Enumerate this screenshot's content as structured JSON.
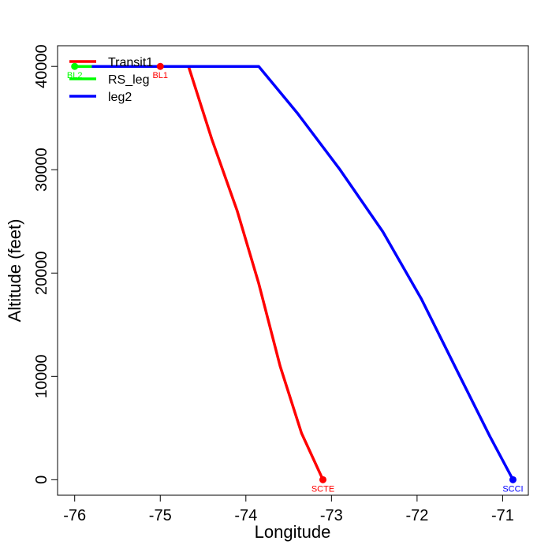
{
  "chart_data": {
    "type": "line",
    "xlabel": "Longitude",
    "ylabel": "Altitude (feet)",
    "xlim": [
      -76.2,
      -70.7
    ],
    "ylim": [
      -1500,
      42000
    ],
    "xticks": [
      -76,
      -75,
      -74,
      -73,
      -72,
      -71
    ],
    "yticks": [
      0,
      10000,
      20000,
      30000,
      40000
    ],
    "xtick_labels": [
      "-76",
      "-75",
      "-74",
      "-73",
      "-72",
      "-71"
    ],
    "ytick_labels": [
      "0",
      "10000",
      "20000",
      "30000",
      "40000"
    ],
    "legend_position": "top-left",
    "series": [
      {
        "name": "Transit1",
        "color": "#ff0000",
        "points": [
          [
            -76.0,
            40000
          ],
          [
            -75.0,
            40000
          ],
          [
            -74.67,
            40000
          ],
          [
            -74.4,
            33000
          ],
          [
            -74.1,
            26000
          ],
          [
            -73.85,
            19000
          ],
          [
            -73.6,
            11000
          ],
          [
            -73.35,
            4500
          ],
          [
            -73.1,
            0
          ]
        ]
      },
      {
        "name": "RS_leg",
        "color": "#00ff00",
        "points": [
          [
            -76.0,
            40000
          ],
          [
            -75.75,
            40000
          ]
        ]
      },
      {
        "name": "leg2",
        "color": "#0000ff",
        "points": [
          [
            -75.8,
            40000
          ],
          [
            -73.85,
            40000
          ],
          [
            -73.4,
            35500
          ],
          [
            -72.9,
            30000
          ],
          [
            -72.4,
            24000
          ],
          [
            -71.95,
            17500
          ],
          [
            -71.5,
            10000
          ],
          [
            -71.15,
            4200
          ],
          [
            -70.88,
            0
          ]
        ]
      }
    ],
    "markers": [
      {
        "label": "BL2",
        "x": -76.0,
        "y": 40000,
        "color": "#00ff00"
      },
      {
        "label": "BL1",
        "x": -75.0,
        "y": 40000,
        "color": "#ff0000"
      },
      {
        "label": "SCTE",
        "x": -73.1,
        "y": 0,
        "color": "#ff0000"
      },
      {
        "label": "SCCI",
        "x": -70.88,
        "y": 0,
        "color": "#0000ff"
      }
    ]
  }
}
